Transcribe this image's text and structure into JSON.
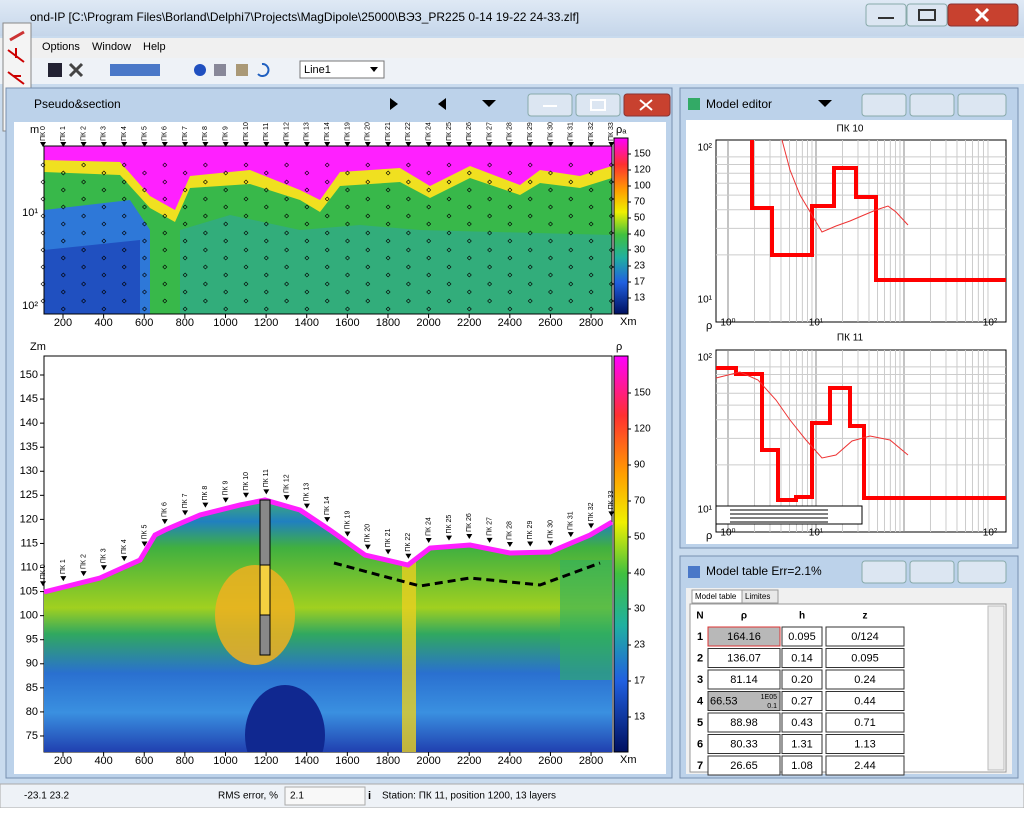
{
  "window": {
    "title": "ond-IP [C:\\Program Files\\Borland\\Delphi7\\Projects\\MagDipole\\25000\\ВЭЗ_PR225 0-14 19-22 24-33.zlf]",
    "menu": [
      "Options",
      "Window",
      "Help"
    ],
    "line_select": "Line1"
  },
  "pseudo_section": {
    "title": "Pseudo&section",
    "y_unit": "m",
    "y_labels": [
      "10¹",
      "10²"
    ],
    "x_unit": "Xm",
    "xticks": [
      200,
      400,
      600,
      800,
      1000,
      1200,
      1400,
      1600,
      1800,
      2000,
      2200,
      2400,
      2600,
      2800
    ],
    "colorbar_label": "ρₐ",
    "colorbar_ticks": [
      150,
      120,
      100,
      70,
      50,
      40,
      30,
      23,
      17,
      13
    ],
    "stations": [
      "ПК 0",
      "ПК 1",
      "ПК 2",
      "ПК 3",
      "ПК 4",
      "ПК 5",
      "ПК 6",
      "ПК 7",
      "ПК 8",
      "ПК 9",
      "ПК 10",
      "ПК 11",
      "ПК 12",
      "ПК 13",
      "ПК 14",
      "ПК 19",
      "ПК 20",
      "ПК 21",
      "ПК 22",
      "ПК 24",
      "ПК 25",
      "ПК 26",
      "ПК 27",
      "ПК 28",
      "ПК 29",
      "ПК 30",
      "ПК 31",
      "ПК 32",
      "ПК 33"
    ]
  },
  "section": {
    "y_unit": "Zm",
    "yticks": [
      150,
      145,
      140,
      135,
      130,
      125,
      120,
      115,
      110,
      105,
      100,
      95,
      90,
      85,
      80,
      75
    ],
    "x_unit": "Xm",
    "xticks": [
      200,
      400,
      600,
      800,
      1000,
      1200,
      1400,
      1600,
      1800,
      2000,
      2200,
      2400,
      2600,
      2800
    ],
    "colorbar_label": "ρ",
    "colorbar_ticks": [
      150,
      120,
      90,
      70,
      50,
      40,
      30,
      23,
      17,
      13
    ],
    "stations": [
      "ПК 0",
      "ПК 1",
      "ПК 2",
      "ПК 3",
      "ПК 4",
      "ПК 5",
      "ПК 6",
      "ПК 7",
      "ПК 8",
      "ПК 9",
      "ПК 10",
      "ПК 11",
      "ПК 12",
      "ПК 13",
      "ПК 14",
      "ПК 19",
      "ПК 20",
      "ПК 21",
      "ПК 22",
      "ПК 24",
      "ПК 25",
      "ПК 26",
      "ПК 27",
      "ПК 28",
      "ПК 29",
      "ПК 30",
      "ПК 31",
      "ПК 32",
      "ПК 33"
    ]
  },
  "model_editor": {
    "title": "Model editor",
    "charts": [
      {
        "title": "ПК 10",
        "axis_label": "ρ",
        "x_labels": [
          "10⁰",
          "10¹",
          "10²"
        ],
        "y_labels": [
          "10²",
          "10¹"
        ]
      },
      {
        "title": "ПК 11",
        "axis_label": "ρ",
        "x_labels": [
          "10⁰",
          "10¹",
          "10²"
        ],
        "y_labels": [
          "10²",
          "10¹"
        ]
      }
    ]
  },
  "model_table": {
    "title": "Model table Err=2.1%",
    "tabs": [
      "Model table",
      "Limites"
    ],
    "header": [
      "N",
      "ρ",
      "h",
      "z"
    ],
    "rows": [
      [
        "1",
        "164.16",
        "0.095",
        "0/124"
      ],
      [
        "2",
        "136.07",
        "0.14",
        "0.095"
      ],
      [
        "3",
        "81.14",
        "0.20",
        "0.24"
      ],
      [
        "4",
        "66.53",
        "0.27",
        "0.44"
      ],
      [
        "5",
        "88.98",
        "0.43",
        "0.71"
      ],
      [
        "6",
        "80.33",
        "1.31",
        "1.13"
      ],
      [
        "7",
        "26.65",
        "1.08",
        "2.44"
      ]
    ],
    "row4_limits": [
      "1E05",
      "0.1"
    ]
  },
  "status_bar": {
    "coords": "-23.1 23.2",
    "rms_label": "RMS error, %",
    "rms_value": "2.1",
    "station_info": "Station: ПК 11, position 1200, 13 layers"
  }
}
